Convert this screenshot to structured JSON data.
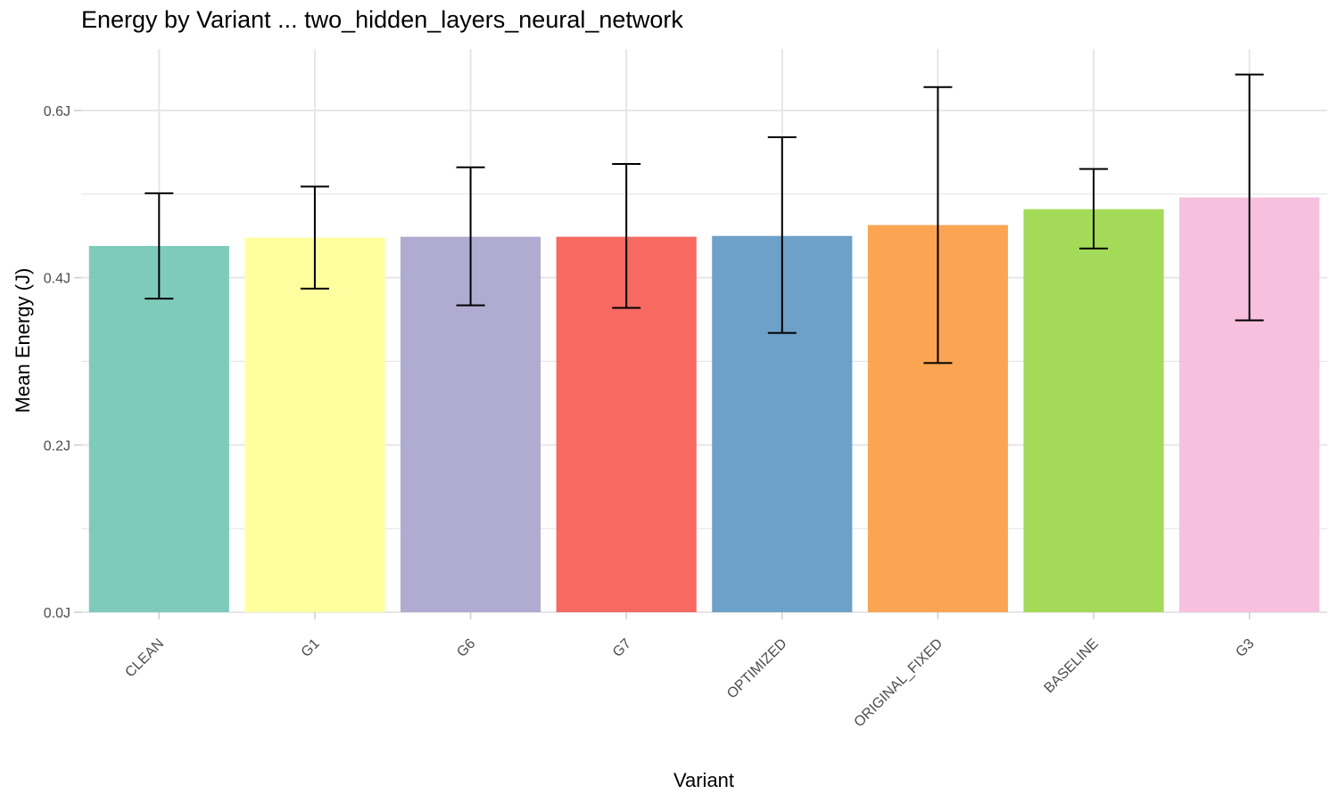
{
  "chart_data": {
    "type": "bar",
    "title": "Energy by Variant ... two_hidden_layers_neural_network",
    "xlabel": "Variant",
    "ylabel": "Mean Energy (J)",
    "categories": [
      "CLEAN",
      "G1",
      "G6",
      "G7",
      "OPTIMIZED",
      "ORIGINAL_FIXED",
      "BASELINE",
      "G3"
    ],
    "values": [
      0.438,
      0.448,
      0.449,
      0.449,
      0.45,
      0.463,
      0.482,
      0.496
    ],
    "error_low": [
      0.375,
      0.387,
      0.367,
      0.364,
      0.334,
      0.298,
      0.435,
      0.349
    ],
    "error_high": [
      0.501,
      0.509,
      0.532,
      0.536,
      0.568,
      0.628,
      0.53,
      0.643
    ],
    "colors": [
      "#7fcbbb",
      "#ffffa0",
      "#b0abd0",
      "#f66a62",
      "#6ea1c9",
      "#fba553",
      "#a3da58",
      "#f7c0de"
    ],
    "ylim": [
      0,
      0.66
    ],
    "y_ticks": [
      0.0,
      0.2,
      0.4,
      0.6
    ],
    "y_tick_labels": [
      "0.0J",
      "0.2J",
      "0.4J",
      "0.6J"
    ],
    "grid": true,
    "legend": "none"
  }
}
